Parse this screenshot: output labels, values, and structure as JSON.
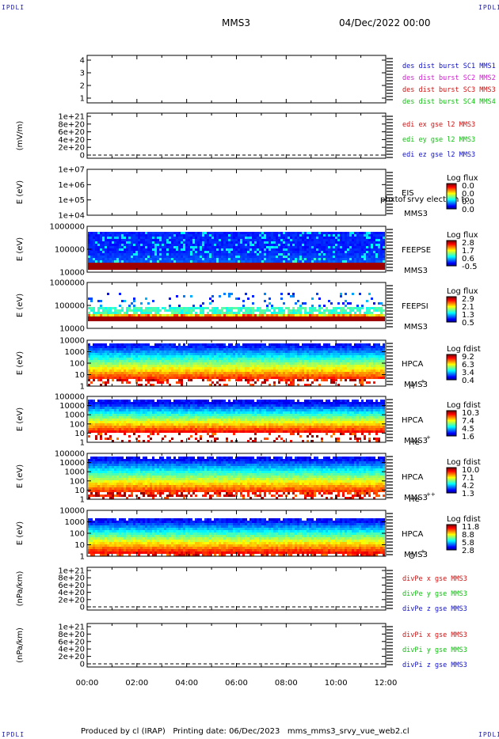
{
  "header": {
    "corner_label": "IPDLI",
    "spacecraft": "MMS3",
    "date": "04/Dec/2022 00:00"
  },
  "footer": {
    "text": "Produced by cl (IRAP)   Printing date: 06/Dec/2023   mms_mms3_srvy_vue_web2.cl"
  },
  "colors": {
    "blue": "#1010c8",
    "magenta": "#d020d0",
    "red": "#d01010",
    "green": "#10c010"
  },
  "chart_data": {
    "type": "heatmap",
    "x_ticks": [
      "00:00",
      "02:00",
      "04:00",
      "06:00",
      "08:00",
      "10:00",
      "12:00"
    ],
    "xlim_hours": [
      0,
      12
    ],
    "panels": [
      {
        "id": "burst",
        "kind": "line",
        "yticks": [
          "4",
          "3",
          "2",
          "1"
        ],
        "ylabel": "",
        "legend": [
          {
            "text": "des dist burst SC1 MMS1",
            "color": "#1010c8"
          },
          {
            "text": "des dist burst SC2 MMS2",
            "color": "#d020d0"
          },
          {
            "text": "des dist burst SC3 MMS3",
            "color": "#d01010"
          },
          {
            "text": "des dist burst SC4 MMS4",
            "color": "#10c010"
          }
        ]
      },
      {
        "id": "edi",
        "kind": "line",
        "yticks": [
          "1e+21",
          "8e+20",
          "6e+20",
          "4e+20",
          "2e+20",
          "0"
        ],
        "ylabel": "(mV/m)",
        "legend": [
          {
            "text": "edi ex gse l2 MMS3",
            "color": "#d01010"
          },
          {
            "text": "edi ey gse l2 MMS3",
            "color": "#10c010"
          },
          {
            "text": "edi ez gse l2 MMS3",
            "color": "#1010c8"
          }
        ]
      },
      {
        "id": "eis",
        "kind": "spec",
        "yticks": [
          "1e+07",
          "1e+06",
          "1e+05",
          "1e+04"
        ],
        "ylabel": "E (eV)",
        "labels": [
          "EIS",
          "MMS3"
        ],
        "extra_label": "phxtof srvy electron to",
        "cb_title": "Log flux",
        "cb_ticks": [
          "0.0",
          "0.0",
          "0.0",
          "0.0"
        ],
        "fill": "none"
      },
      {
        "id": "feepse",
        "kind": "spec",
        "yticks": [
          "1000000",
          "100000",
          "10000"
        ],
        "ylabel": "E (eV)",
        "labels": [
          "FEEPSE",
          "MMS3"
        ],
        "cb_title": "Log flux",
        "cb_ticks": [
          "2.8",
          "1.7",
          "0.6",
          "-0.5"
        ],
        "fill": "feeps_e"
      },
      {
        "id": "feepsi",
        "kind": "spec",
        "yticks": [
          "1000000",
          "100000",
          "10000"
        ],
        "ylabel": "E (eV)",
        "labels": [
          "FEEPSI",
          "MMS3"
        ],
        "cb_title": "Log flux",
        "cb_ticks": [
          "2.9",
          "2.1",
          "1.3",
          "0.5"
        ],
        "fill": "feeps_i"
      },
      {
        "id": "hpca_h",
        "kind": "spec",
        "yticks": [
          "10000",
          "1000",
          "100",
          "10",
          "1"
        ],
        "ylabel": "E (eV)",
        "labels": [
          "HPCA",
          "MMS3"
        ],
        "species": "H",
        "species_sup": "+",
        "cb_title": "Log fdist",
        "cb_ticks": [
          "9.2",
          "6.3",
          "3.4",
          "0.4"
        ],
        "fill": "hpca_h"
      },
      {
        "id": "hpca_he",
        "kind": "spec",
        "yticks": [
          "100000",
          "10000",
          "1000",
          "100",
          "10",
          "1"
        ],
        "ylabel": "E (eV)",
        "labels": [
          "HPCA",
          "MMS3"
        ],
        "species": "He",
        "species_sup": "+",
        "cb_title": "Log fdist",
        "cb_ticks": [
          "10.3",
          "7.4",
          "4.5",
          "1.6"
        ],
        "fill": "hpca_he"
      },
      {
        "id": "hpca_hepp",
        "kind": "spec",
        "yticks": [
          "100000",
          "10000",
          "1000",
          "100",
          "10",
          "1"
        ],
        "ylabel": "E (eV)",
        "labels": [
          "HPCA",
          "MMS3"
        ],
        "species": "He",
        "species_sup": "++",
        "cb_title": "Log fdist",
        "cb_ticks": [
          "10.0",
          "7.1",
          "4.2",
          "1.3"
        ],
        "fill": "hpca_hepp"
      },
      {
        "id": "hpca_o",
        "kind": "spec",
        "yticks": [
          "10000",
          "1000",
          "100",
          "10",
          "1"
        ],
        "ylabel": "E (eV)",
        "labels": [
          "HPCA",
          "MMS3"
        ],
        "species": "O",
        "species_sup": "+",
        "cb_title": "Log fdist",
        "cb_ticks": [
          "11.8",
          "8.8",
          "5.8",
          "2.8"
        ],
        "fill": "hpca_o"
      },
      {
        "id": "divpe",
        "kind": "line",
        "yticks": [
          "1e+21",
          "8e+20",
          "6e+20",
          "4e+20",
          "2e+20",
          "0"
        ],
        "ylabel": "(nPa/km)",
        "legend": [
          {
            "text": "divPe x gse MMS3",
            "color": "#d01010"
          },
          {
            "text": "divPe y gse MMS3",
            "color": "#10c010"
          },
          {
            "text": "divPe z gse MMS3",
            "color": "#1010c8"
          }
        ]
      },
      {
        "id": "divpi",
        "kind": "line",
        "yticks": [
          "1e+21",
          "8e+20",
          "6e+20",
          "4e+20",
          "2e+20",
          "0"
        ],
        "ylabel": "(nPa/km)",
        "legend": [
          {
            "text": "divPi x gse MMS3",
            "color": "#d01010"
          },
          {
            "text": "divPi y gse MMS3",
            "color": "#10c010"
          },
          {
            "text": "divPi z gse MMS3",
            "color": "#1010c8"
          }
        ]
      }
    ]
  }
}
